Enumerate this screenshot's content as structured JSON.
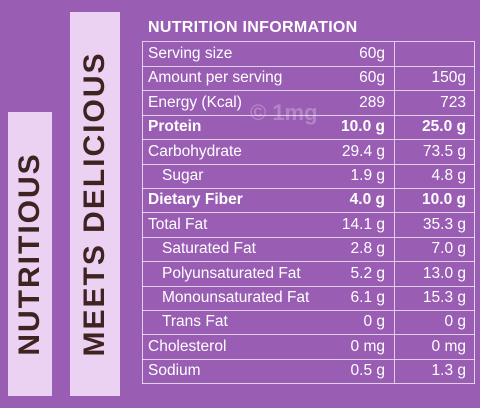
{
  "side_text": [
    "NUTRITIOUS",
    "MEETS DELICIOUS"
  ],
  "title": "NUTRITION INFORMATION",
  "watermark": "© 1mg",
  "rows": [
    {
      "cells": [
        "Serving size",
        "60g"
      ]
    },
    {
      "cells": [
        "Amount per serving",
        "60g",
        "150g"
      ]
    },
    {
      "cells": [
        "Energy (Kcal)",
        "289",
        "723"
      ]
    },
    {
      "cells": [
        "Protein",
        "10.0 g",
        "25.0 g"
      ],
      "bold": true
    },
    {
      "cells": [
        "Carbohydrate",
        "29.4 g",
        "73.5 g"
      ]
    },
    {
      "cells": [
        "Sugar",
        "1.9 g",
        "4.8 g"
      ],
      "indent": true
    },
    {
      "cells": [
        "Dietary Fiber",
        "4.0 g",
        "10.0 g"
      ],
      "bold": true
    },
    {
      "cells": [
        "Total Fat",
        "14.1 g",
        "35.3 g"
      ]
    },
    {
      "cells": [
        "Saturated Fat",
        "2.8 g",
        "7.0 g"
      ],
      "indent": true
    },
    {
      "cells": [
        "Polyunsaturated Fat",
        "5.2 g",
        "13.0 g"
      ],
      "indent": true
    },
    {
      "cells": [
        "Monounsaturated Fat",
        "6.1 g",
        "15.3 g"
      ],
      "indent": true
    },
    {
      "cells": [
        "Trans Fat",
        "0 g",
        "0 g"
      ],
      "indent": true
    },
    {
      "cells": [
        "Cholesterol",
        "0 mg",
        "0 mg"
      ]
    },
    {
      "cells": [
        "Sodium",
        "0.5 g",
        "1.3 g"
      ]
    }
  ]
}
